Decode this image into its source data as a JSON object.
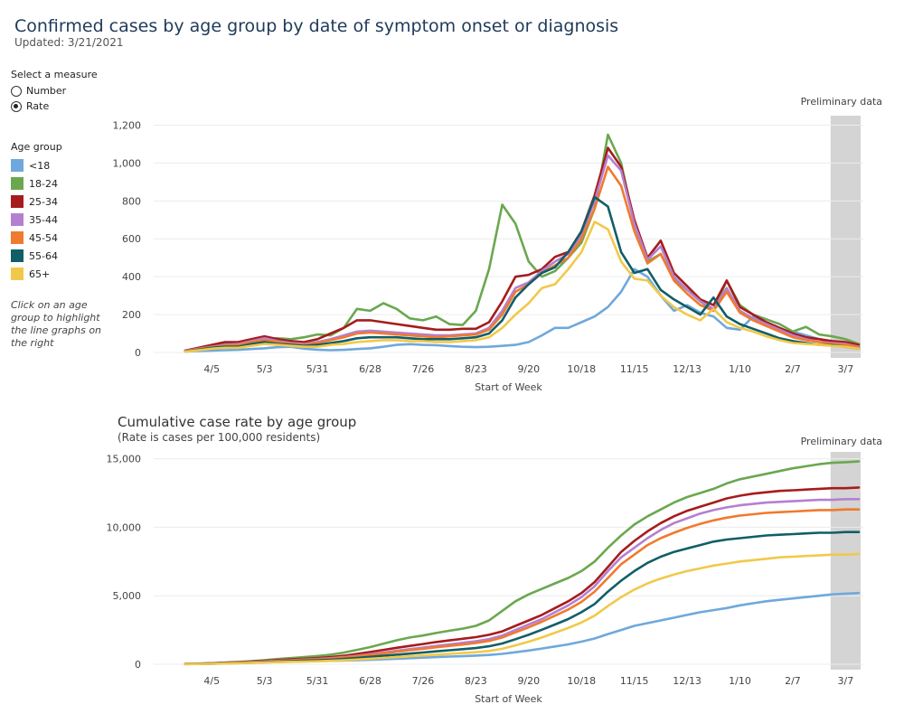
{
  "header": {
    "title": "Confirmed cases by age group by date of symptom onset or diagnosis",
    "updated": "Updated: 3/21/2021"
  },
  "sidebar": {
    "measure_label": "Select a measure",
    "options": [
      {
        "label": "Number",
        "selected": false
      },
      {
        "label": "Rate",
        "selected": true
      }
    ],
    "age_label": "Age group",
    "hint": "Click on an age group to highlight the line graphs on the right"
  },
  "colors": {
    "<18": "#6fa8dc",
    "18-24": "#6aa84f",
    "25-34": "#a61c1c",
    "35-44": "#b57fd0",
    "45-54": "#f07a2e",
    "55-64": "#115e67",
    "65+": "#f1c94a",
    "preliminary_band": "#d4d4d4"
  },
  "chart_data": [
    {
      "type": "line",
      "title": "",
      "xlabel": "Start of Week",
      "ylabel": "",
      "annotation": "Preliminary data",
      "ylim": [
        0,
        1250
      ],
      "yticks": [
        0,
        200,
        400,
        600,
        800,
        1000,
        1200
      ],
      "ytick_labels": [
        "0",
        "200",
        "400",
        "600",
        "800",
        "1,000",
        "1,200"
      ],
      "xtick_labels": [
        "4/5",
        "5/3",
        "5/31",
        "6/28",
        "7/26",
        "8/23",
        "9/20",
        "10/18",
        "11/15",
        "12/13",
        "1/10",
        "2/7",
        "3/7"
      ],
      "n_weeks": 52,
      "preliminary_weeks": [
        49,
        51
      ],
      "series": [
        {
          "name": "<18",
          "values": [
            5,
            8,
            10,
            12,
            14,
            18,
            22,
            28,
            30,
            20,
            15,
            12,
            14,
            18,
            22,
            30,
            40,
            44,
            40,
            38,
            34,
            30,
            28,
            30,
            35,
            40,
            55,
            90,
            130,
            130,
            160,
            190,
            240,
            320,
            440,
            400,
            300,
            220,
            250,
            210,
            190,
            130,
            120,
            190,
            150,
            120,
            110,
            90,
            70,
            50,
            40,
            25
          ]
        },
        {
          "name": "18-24",
          "values": [
            10,
            20,
            35,
            45,
            50,
            60,
            70,
            75,
            70,
            80,
            95,
            90,
            130,
            230,
            220,
            260,
            230,
            180,
            170,
            190,
            150,
            145,
            220,
            440,
            780,
            680,
            480,
            400,
            430,
            500,
            580,
            760,
            1150,
            1000,
            680,
            480,
            520,
            390,
            330,
            270,
            220,
            380,
            250,
            200,
            175,
            150,
            110,
            135,
            95,
            85,
            70,
            45
          ]
        },
        {
          "name": "25-34",
          "values": [
            10,
            25,
            40,
            55,
            55,
            70,
            85,
            70,
            60,
            55,
            70,
            100,
            130,
            170,
            170,
            160,
            150,
            140,
            130,
            120,
            120,
            125,
            125,
            160,
            270,
            400,
            410,
            440,
            505,
            530,
            640,
            830,
            1080,
            980,
            700,
            500,
            590,
            420,
            350,
            280,
            250,
            380,
            240,
            200,
            160,
            130,
            100,
            80,
            70,
            60,
            55,
            40
          ]
        },
        {
          "name": "35-44",
          "values": [
            8,
            20,
            30,
            40,
            45,
            60,
            75,
            60,
            50,
            45,
            55,
            70,
            90,
            110,
            115,
            110,
            105,
            100,
            95,
            90,
            90,
            95,
            100,
            130,
            220,
            340,
            370,
            430,
            480,
            520,
            620,
            800,
            1040,
            960,
            680,
            490,
            560,
            400,
            330,
            270,
            230,
            340,
            220,
            180,
            150,
            120,
            90,
            70,
            55,
            50,
            45,
            30
          ]
        },
        {
          "name": "45-54",
          "values": [
            6,
            18,
            28,
            35,
            40,
            55,
            65,
            55,
            45,
            40,
            50,
            65,
            80,
            100,
            105,
            100,
            95,
            90,
            85,
            80,
            85,
            90,
            95,
            120,
            200,
            320,
            360,
            420,
            460,
            500,
            600,
            760,
            980,
            880,
            640,
            470,
            520,
            380,
            310,
            250,
            220,
            320,
            210,
            170,
            140,
            110,
            80,
            65,
            55,
            45,
            40,
            28
          ]
        },
        {
          "name": "55-64",
          "values": [
            5,
            15,
            25,
            30,
            30,
            45,
            55,
            45,
            40,
            35,
            40,
            50,
            60,
            75,
            80,
            80,
            80,
            75,
            70,
            70,
            70,
            75,
            80,
            100,
            170,
            290,
            360,
            420,
            450,
            530,
            640,
            820,
            770,
            530,
            420,
            440,
            330,
            280,
            240,
            200,
            290,
            190,
            150,
            125,
            100,
            75,
            60,
            50,
            40,
            38,
            30,
            20
          ]
        },
        {
          "name": "65+",
          "values": [
            4,
            12,
            20,
            25,
            25,
            35,
            45,
            40,
            35,
            30,
            30,
            40,
            45,
            55,
            60,
            65,
            65,
            60,
            60,
            55,
            55,
            60,
            65,
            80,
            130,
            200,
            260,
            340,
            360,
            440,
            530,
            690,
            650,
            480,
            390,
            380,
            300,
            240,
            200,
            170,
            230,
            160,
            130,
            110,
            85,
            65,
            50,
            45,
            40,
            35,
            30,
            20
          ]
        }
      ]
    },
    {
      "type": "line",
      "title": "Cumulative case rate by age group",
      "subtitle": "(Rate is cases per 100,000 residents)",
      "xlabel": "Start of Week",
      "ylabel": "",
      "annotation": "Preliminary data",
      "ylim": [
        0,
        15500
      ],
      "yticks": [
        0,
        5000,
        10000,
        15000
      ],
      "ytick_labels": [
        "0",
        "5,000",
        "10,000",
        "15,000"
      ],
      "xtick_labels": [
        "4/5",
        "5/3",
        "5/31",
        "6/28",
        "7/26",
        "8/23",
        "9/20",
        "10/18",
        "11/15",
        "12/13",
        "1/10",
        "2/7",
        "3/7"
      ],
      "n_weeks": 52,
      "preliminary_weeks": [
        49,
        51
      ],
      "series": [
        {
          "name": "<18",
          "values": [
            20,
            30,
            40,
            60,
            80,
            100,
            130,
            160,
            190,
            210,
            230,
            250,
            270,
            290,
            320,
            360,
            400,
            440,
            480,
            520,
            560,
            590,
            630,
            680,
            760,
            880,
            1000,
            1150,
            1300,
            1450,
            1650,
            1880,
            2200,
            2500,
            2800,
            3000,
            3200,
            3400,
            3600,
            3800,
            3950,
            4100,
            4300,
            4450,
            4600,
            4700,
            4800,
            4900,
            5000,
            5100,
            5150,
            5200
          ]
        },
        {
          "name": "18-24",
          "values": [
            30,
            50,
            80,
            120,
            170,
            230,
            300,
            380,
            450,
            520,
            600,
            700,
            850,
            1050,
            1250,
            1500,
            1750,
            1950,
            2100,
            2280,
            2450,
            2600,
            2800,
            3200,
            3900,
            4600,
            5100,
            5500,
            5900,
            6300,
            6800,
            7500,
            8500,
            9400,
            10200,
            10800,
            11300,
            11800,
            12200,
            12500,
            12800,
            13200,
            13500,
            13700,
            13900,
            14100,
            14300,
            14450,
            14600,
            14700,
            14750,
            14800
          ]
        },
        {
          "name": "25-34",
          "values": [
            25,
            40,
            70,
            110,
            150,
            200,
            260,
            310,
            360,
            400,
            450,
            520,
            620,
            750,
            900,
            1050,
            1200,
            1340,
            1480,
            1620,
            1740,
            1860,
            1980,
            2150,
            2400,
            2800,
            3200,
            3600,
            4100,
            4600,
            5200,
            6000,
            7100,
            8200,
            9000,
            9700,
            10300,
            10800,
            11200,
            11500,
            11800,
            12100,
            12300,
            12450,
            12550,
            12650,
            12700,
            12750,
            12800,
            12850,
            12850,
            12900
          ]
        },
        {
          "name": "35-44",
          "values": [
            20,
            35,
            60,
            90,
            130,
            170,
            220,
            260,
            300,
            340,
            380,
            440,
            520,
            620,
            740,
            860,
            980,
            1100,
            1220,
            1340,
            1450,
            1560,
            1680,
            1840,
            2100,
            2500,
            2900,
            3300,
            3800,
            4300,
            4900,
            5700,
            6800,
            7800,
            8500,
            9200,
            9800,
            10300,
            10650,
            11000,
            11250,
            11450,
            11600,
            11700,
            11800,
            11850,
            11900,
            11950,
            12000,
            12000,
            12050,
            12050
          ]
        },
        {
          "name": "45-54",
          "values": [
            18,
            30,
            55,
            85,
            120,
            160,
            200,
            240,
            280,
            320,
            360,
            410,
            490,
            580,
            690,
            800,
            910,
            1020,
            1130,
            1240,
            1340,
            1440,
            1550,
            1700,
            1950,
            2330,
            2700,
            3100,
            3550,
            4000,
            4550,
            5300,
            6300,
            7300,
            8000,
            8700,
            9200,
            9600,
            9950,
            10250,
            10500,
            10700,
            10850,
            10950,
            11050,
            11100,
            11150,
            11200,
            11250,
            11250,
            11300,
            11300
          ]
        },
        {
          "name": "55-64",
          "values": [
            15,
            25,
            45,
            70,
            100,
            130,
            165,
            200,
            230,
            260,
            290,
            330,
            390,
            460,
            540,
            620,
            700,
            780,
            860,
            940,
            1020,
            1100,
            1180,
            1310,
            1520,
            1830,
            2150,
            2520,
            2900,
            3300,
            3800,
            4400,
            5300,
            6100,
            6800,
            7400,
            7850,
            8200,
            8450,
            8700,
            8950,
            9100,
            9200,
            9300,
            9400,
            9450,
            9500,
            9550,
            9600,
            9600,
            9650,
            9650
          ]
        },
        {
          "name": "65+",
          "values": [
            10,
            20,
            35,
            55,
            80,
            105,
            130,
            155,
            180,
            200,
            220,
            250,
            290,
            340,
            400,
            460,
            520,
            580,
            640,
            700,
            760,
            820,
            880,
            970,
            1130,
            1380,
            1650,
            1950,
            2300,
            2650,
            3050,
            3550,
            4250,
            4900,
            5450,
            5900,
            6250,
            6550,
            6800,
            7000,
            7200,
            7350,
            7500,
            7600,
            7700,
            7800,
            7850,
            7900,
            7950,
            8000,
            8000,
            8050
          ]
        }
      ]
    }
  ]
}
